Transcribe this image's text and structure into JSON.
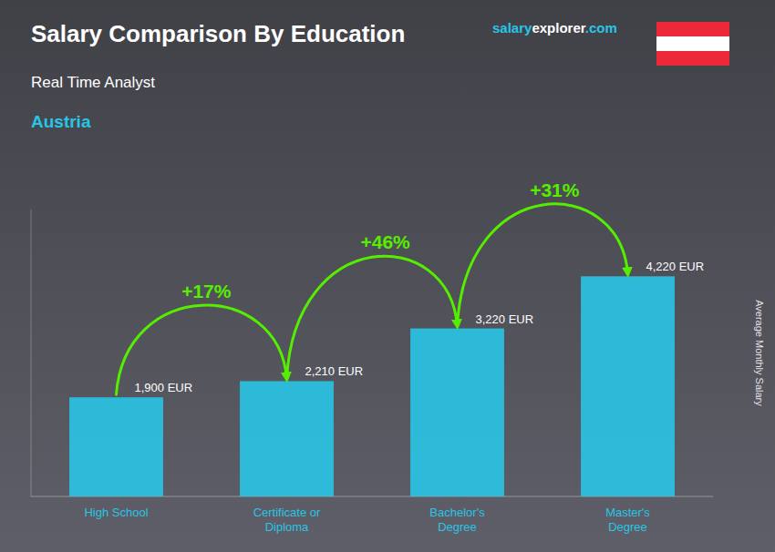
{
  "chart_data": {
    "type": "bar",
    "title": "Salary Comparison By Education",
    "subtitle": "Real Time Analyst",
    "ylabel": "Average Monthly Salary",
    "annotations": [
      "+17%",
      "+46%",
      "+31%",
      "Austria",
      "salary",
      "explorer",
      ".com"
    ],
    "categories": [
      "High School",
      "Certificate or\nDiploma",
      "Bachelor's\nDegree",
      "Master's\nDegree"
    ],
    "values": [
      1900,
      2210,
      3220,
      4220
    ],
    "value_labels": [
      "1,900 EUR",
      "2,210 EUR",
      "3,220 EUR",
      "4,220 EUR"
    ],
    "data_labels": true,
    "color": "#29c5e6",
    "ylim": [
      0,
      5500
    ],
    "tick_labels": "x",
    "grid": false
  }
}
